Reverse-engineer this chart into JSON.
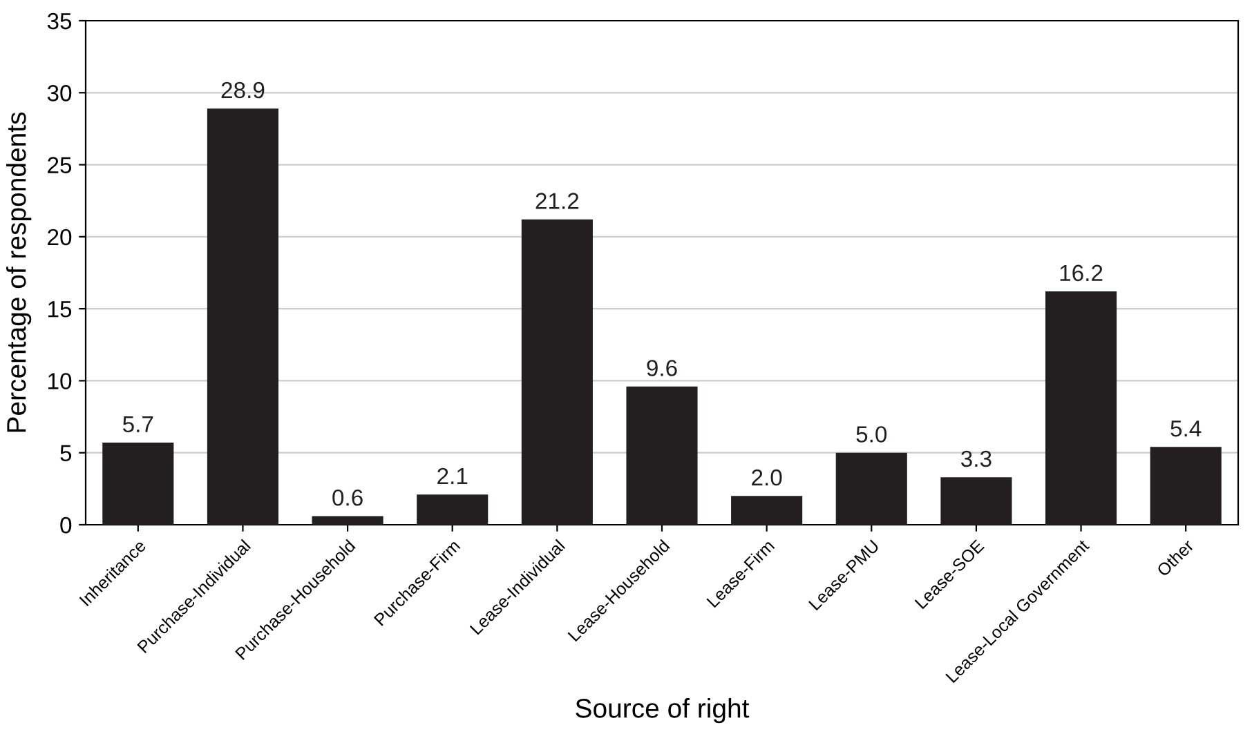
{
  "chart_data": {
    "type": "bar",
    "xlabel": "Source of right",
    "ylabel": "Percentage of respondents",
    "categories": [
      "Inheritance",
      "Purchase-Individual",
      "Purchase-Household",
      "Purchase-Firm",
      "Lease-Individual",
      "Lease-Household",
      "Lease-Firm",
      "Lease-PMU",
      "Lease-SOE",
      "Lease-Local Government",
      "Other"
    ],
    "values": [
      5.7,
      28.9,
      0.6,
      2.1,
      21.2,
      9.6,
      2.0,
      5.0,
      3.3,
      16.2,
      5.4
    ],
    "value_labels": [
      "5.7",
      "28.9",
      "0.6",
      "2.1",
      "21.2",
      "9.6",
      "2.0",
      "5.0",
      "3.3",
      "16.2",
      "5.4"
    ],
    "color": "#231f20",
    "ylim": [
      0,
      35
    ],
    "yticks": [
      0,
      5,
      10,
      15,
      20,
      25,
      30,
      35
    ],
    "grid": "y",
    "legend": false
  }
}
